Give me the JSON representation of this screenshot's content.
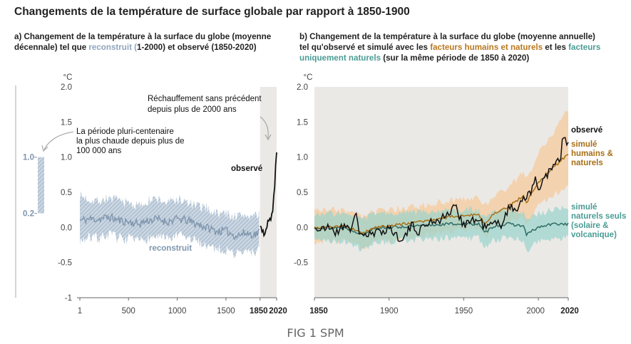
{
  "title": "Changements de la température de surface globale par rapport à 1850-1900",
  "panel_a": {
    "subtitle_line1": "a) Changement de la température à la surface du globe (moyenne",
    "subtitle_line2a": "décennale) tel que ",
    "subtitle_reconstruit": "reconstruit (",
    "subtitle_line2b": "1-2000) et observé (1850-2020)",
    "unit": "°C",
    "annotation_record": [
      "Réchauffement sans précédent",
      "depuis plus de 2000 ans"
    ],
    "annotation_period": [
      "La période pluri-centenaire",
      "la plus chaude depuis plus de",
      "100 000 ans"
    ],
    "label_observe": "observé",
    "label_reconstruit": "reconstruit",
    "bar_labels": [
      "1.0",
      "0.2"
    ]
  },
  "panel_b": {
    "subtitle_line1": "b) Changement de la température à la surface du globe (moyenne annuelle)",
    "subtitle_line2a": "tel qu'observé et simulé avec les ",
    "subtitle_human": "facteurs humains et naturels",
    "subtitle_line2b": " et les ",
    "subtitle_nat1": "facteurs",
    "subtitle_nat2": "uniquement naturels",
    "subtitle_line3b": " (sur la même période de 1850 à 2020)",
    "unit": "°C",
    "label_observe": "observé",
    "label_human": [
      "simulé",
      "humains &",
      "naturels"
    ],
    "label_natural": [
      "simulé",
      "naturels seuls",
      "(solaire &",
      "volcanique)"
    ]
  },
  "caption": "FIG 1 SPM",
  "colors": {
    "observed": "#111111",
    "reconstructed": "#7f96ae",
    "reconstructed_band": "#b3c3d3",
    "human_line": "#a76f17",
    "human_band": "#f5c99c",
    "natural_line": "#2f6d68",
    "natural_band": "#9ad3cc",
    "shade": "#ebe9e6",
    "bar": "#b3c3d3"
  },
  "chart_data": [
    {
      "type": "line",
      "panel": "a",
      "ylim": [
        -1,
        2
      ],
      "xlim": [
        1,
        2020
      ],
      "yticks": [
        "2.0",
        "1.5",
        "1.0",
        "0.5",
        "0.0",
        "-0.5",
        "-1"
      ],
      "xticks": [
        "1",
        "500",
        "1000",
        "1500",
        "1850",
        "2020"
      ],
      "series": [
        {
          "name": "reconstruit",
          "x": [
            1,
            100,
            200,
            300,
            400,
            500,
            600,
            700,
            800,
            900,
            1000,
            1100,
            1200,
            1300,
            1400,
            1500,
            1600,
            1700,
            1800,
            1850
          ],
          "y": [
            0.1,
            0.12,
            0.12,
            0.15,
            0.1,
            0.08,
            0.05,
            0.1,
            0.12,
            0.08,
            0.12,
            0.1,
            0.05,
            0.0,
            -0.05,
            -0.05,
            -0.12,
            -0.08,
            -0.1,
            -0.05
          ],
          "band_low": [
            -0.18,
            -0.15,
            -0.15,
            -0.1,
            -0.15,
            -0.17,
            -0.2,
            -0.15,
            -0.13,
            -0.18,
            -0.12,
            -0.15,
            -0.2,
            -0.25,
            -0.3,
            -0.32,
            -0.38,
            -0.35,
            -0.35,
            -0.28
          ],
          "band_high": [
            0.45,
            0.4,
            0.38,
            0.42,
            0.38,
            0.35,
            0.3,
            0.38,
            0.4,
            0.35,
            0.4,
            0.35,
            0.3,
            0.28,
            0.2,
            0.2,
            0.15,
            0.18,
            0.15,
            0.2
          ]
        },
        {
          "name": "observé",
          "x": [
            1850,
            1880,
            1900,
            1920,
            1940,
            1960,
            1980,
            1990,
            2000,
            2010,
            2020
          ],
          "y": [
            0.0,
            -0.05,
            -0.1,
            0.0,
            0.12,
            0.08,
            0.28,
            0.45,
            0.6,
            0.85,
            1.09
          ]
        }
      ],
      "bar_range": [
        0.2,
        1.0
      ]
    },
    {
      "type": "line",
      "panel": "b",
      "ylim": [
        -1,
        2
      ],
      "xlim": [
        1850,
        2020
      ],
      "yticks": [
        "2.0",
        "1.5",
        "1.0",
        "0.5",
        "0.0",
        "-0.5"
      ],
      "xticks": [
        "1850",
        "1900",
        "1950",
        "2000",
        "2020"
      ],
      "series": [
        {
          "name": "observé",
          "x": [
            1850,
            1855,
            1860,
            1865,
            1870,
            1875,
            1878,
            1880,
            1885,
            1890,
            1895,
            1900,
            1905,
            1910,
            1915,
            1920,
            1925,
            1930,
            1935,
            1940,
            1944,
            1950,
            1955,
            1960,
            1965,
            1970,
            1975,
            1980,
            1985,
            1990,
            1995,
            1998,
            2000,
            2005,
            2010,
            2015,
            2016,
            2020
          ],
          "y": [
            0.0,
            -0.05,
            0.02,
            -0.08,
            0.05,
            -0.02,
            0.18,
            -0.05,
            -0.12,
            -0.1,
            -0.05,
            0.0,
            -0.12,
            -0.15,
            0.02,
            -0.05,
            0.05,
            0.1,
            0.12,
            0.2,
            0.3,
            0.05,
            0.1,
            0.1,
            0.0,
            0.05,
            0.05,
            0.28,
            0.25,
            0.45,
            0.45,
            0.72,
            0.55,
            0.75,
            0.85,
            1.0,
            1.25,
            1.2
          ]
        },
        {
          "name": "simulé humains & naturels",
          "x": [
            1850,
            1870,
            1883,
            1890,
            1900,
            1920,
            1940,
            1960,
            1964,
            1970,
            1980,
            1990,
            1992,
            2000,
            2010,
            2020
          ],
          "y": [
            0.0,
            0.02,
            -0.08,
            0.0,
            0.02,
            0.08,
            0.15,
            0.18,
            0.05,
            0.2,
            0.3,
            0.45,
            0.35,
            0.65,
            0.85,
            1.05
          ],
          "band_low": [
            -0.2,
            -0.18,
            -0.3,
            -0.2,
            -0.18,
            -0.12,
            -0.05,
            -0.02,
            -0.15,
            0.0,
            0.05,
            0.15,
            0.05,
            0.3,
            0.45,
            0.6
          ],
          "band_high": [
            0.25,
            0.25,
            0.15,
            0.22,
            0.25,
            0.3,
            0.38,
            0.42,
            0.3,
            0.45,
            0.55,
            0.8,
            0.7,
            1.05,
            1.35,
            1.7
          ]
        },
        {
          "name": "simulé naturels seuls",
          "x": [
            1850,
            1870,
            1883,
            1890,
            1900,
            1920,
            1940,
            1960,
            1964,
            1970,
            1980,
            1990,
            1992,
            2000,
            2010,
            2020
          ],
          "y": [
            0.0,
            0.0,
            -0.1,
            0.0,
            0.0,
            0.02,
            0.05,
            0.05,
            -0.08,
            0.02,
            0.05,
            0.02,
            -0.1,
            0.0,
            0.05,
            0.05
          ],
          "band_low": [
            -0.2,
            -0.2,
            -0.32,
            -0.22,
            -0.2,
            -0.18,
            -0.15,
            -0.15,
            -0.28,
            -0.18,
            -0.15,
            -0.18,
            -0.35,
            -0.2,
            -0.15,
            -0.15
          ],
          "band_high": [
            0.2,
            0.2,
            0.1,
            0.2,
            0.2,
            0.22,
            0.25,
            0.25,
            0.12,
            0.22,
            0.25,
            0.22,
            0.1,
            0.2,
            0.25,
            0.28
          ]
        }
      ]
    }
  ]
}
